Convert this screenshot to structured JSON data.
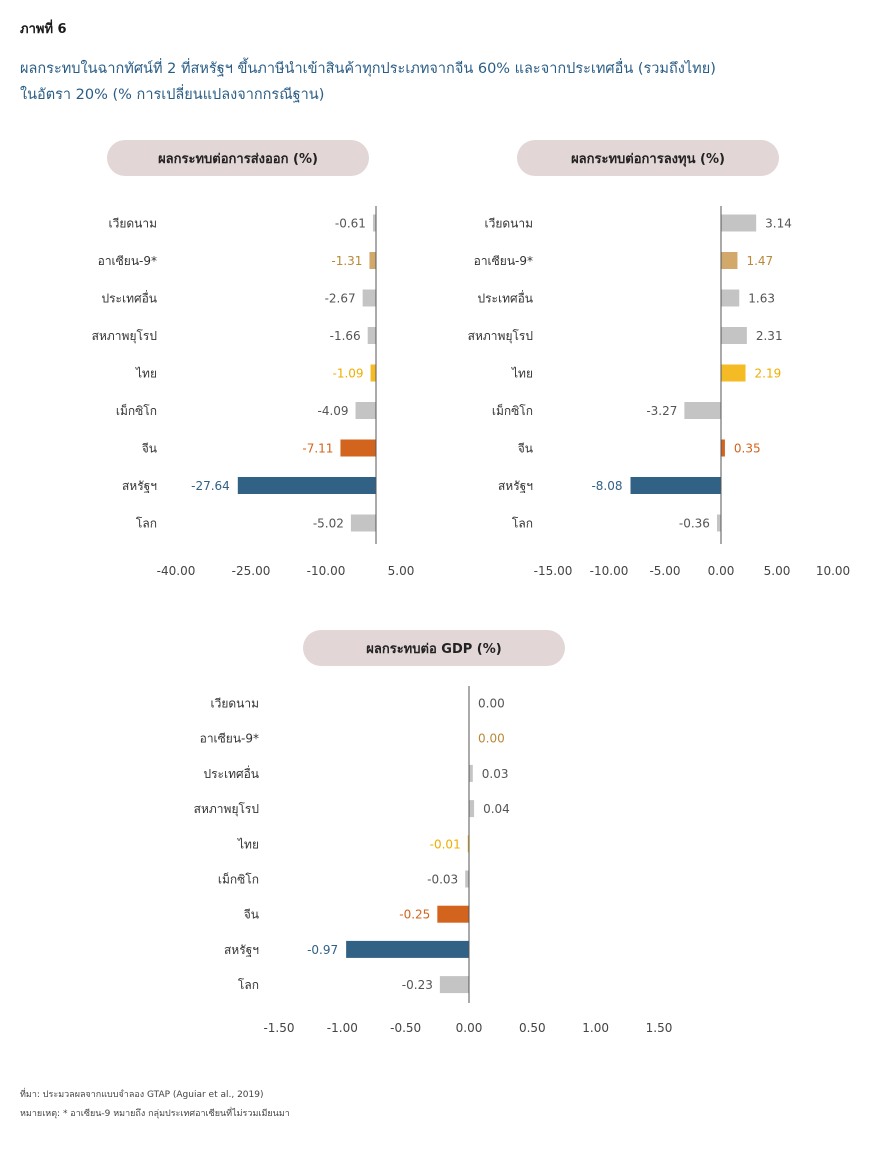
{
  "figure_label": "ภาพที่ 6",
  "title_lines": [
    "ผลกระทบในฉากทัศน์ที่ 2 ที่สหรัฐฯ ขึ้นภาษีนำเข้าสินค้าทุกประเภทจากจีน 60% และจากประเทศอื่น (รวมถึงไทย)",
    "ในอัตรา 20% (% การเปลี่ยนแปลงจากกรณีฐาน)"
  ],
  "source": "ที่มา: ประมวลผลจากแบบจำลอง GTAP (Aguiar et al., 2019)",
  "note": "หมายเหตุ: * อาเซียน-9 หมายถึง กลุ่มประเทศอาเซียนที่ไม่รวมเมียนมา",
  "colors": {
    "neutral": "#c4c4c4",
    "asean": "#d2a86b",
    "asean_text": "#b9893a",
    "thailand": "#f5bb24",
    "thailand_text": "#efae00",
    "china": "#d2641e",
    "usa": "#316185",
    "header_bg": "#e2d6d6"
  },
  "chart_data": [
    {
      "type": "bar",
      "orientation": "horizontal",
      "title": "ผลกระทบต่อการส่งออก (%)",
      "categories": [
        "เวียดนาม",
        "อาเซียน-9*",
        "ประเทศอื่น",
        "สหภาพยุโรป",
        "ไทย",
        "เม็กซิโก",
        "จีน",
        "สหรัฐฯ",
        "โลก"
      ],
      "values": [
        -0.61,
        -1.31,
        -2.67,
        -1.66,
        -1.09,
        -4.09,
        -7.11,
        -27.64,
        -5.02
      ],
      "value_labels": [
        "-0.61",
        "-1.31",
        "-2.67",
        "-1.66",
        "-1.09",
        "-4.09",
        "-7.11",
        "-27.64",
        "-5.02"
      ],
      "color_keys": [
        "neutral",
        "asean",
        "neutral",
        "neutral",
        "thailand",
        "neutral",
        "china",
        "usa",
        "neutral"
      ],
      "xlim": [
        -40,
        5
      ],
      "ticks": [
        -40,
        -25,
        -10,
        5
      ],
      "tick_labels": [
        "-40.00",
        "-25.00",
        "-10.00",
        "5.00"
      ],
      "zero_line_at": 0
    },
    {
      "type": "bar",
      "orientation": "horizontal",
      "title": "ผลกระทบต่อการลงทุน (%)",
      "categories": [
        "เวียดนาม",
        "อาเซียน-9*",
        "ประเทศอื่น",
        "สหภาพยุโรป",
        "ไทย",
        "เม็กซิโก",
        "จีน",
        "สหรัฐฯ",
        "โลก"
      ],
      "values": [
        3.14,
        1.47,
        1.63,
        2.31,
        2.19,
        -3.27,
        0.35,
        -8.08,
        -0.36
      ],
      "value_labels": [
        "3.14",
        "1.47",
        "1.63",
        "2.31",
        "2.19",
        "-3.27",
        "0.35",
        "-8.08",
        "-0.36"
      ],
      "color_keys": [
        "neutral",
        "asean",
        "neutral",
        "neutral",
        "thailand",
        "neutral",
        "china",
        "usa",
        "neutral"
      ],
      "xlim": [
        -15,
        10
      ],
      "ticks": [
        -15,
        -10,
        -5,
        0,
        5,
        10
      ],
      "tick_labels": [
        "-15.00",
        "-10.00",
        "-5.00",
        "0.00",
        "5.00",
        "10.00"
      ],
      "zero_line_at": 0
    },
    {
      "type": "bar",
      "orientation": "horizontal",
      "title": "ผลกระทบต่อ GDP (%)",
      "categories": [
        "เวียดนาม",
        "อาเซียน-9*",
        "ประเทศอื่น",
        "สหภาพยุโรป",
        "ไทย",
        "เม็กซิโก",
        "จีน",
        "สหรัฐฯ",
        "โลก"
      ],
      "values": [
        0.0,
        0.0,
        0.03,
        0.04,
        -0.01,
        -0.03,
        -0.25,
        -0.97,
        -0.23
      ],
      "value_labels": [
        "0.00",
        "0.00",
        "0.03",
        "0.04",
        "-0.01",
        "-0.03",
        "-0.25",
        "-0.97",
        "-0.23"
      ],
      "color_keys": [
        "neutral",
        "asean",
        "neutral",
        "neutral",
        "thailand",
        "neutral",
        "china",
        "usa",
        "neutral"
      ],
      "xlim": [
        -1.5,
        1.5
      ],
      "ticks": [
        -1.5,
        -1.0,
        -0.5,
        0,
        0.5,
        1.0,
        1.5
      ],
      "tick_labels": [
        "-1.50",
        "-1.00",
        "-0.50",
        "0.00",
        "0.50",
        "1.00",
        "1.50"
      ],
      "zero_line_at": 0
    }
  ]
}
